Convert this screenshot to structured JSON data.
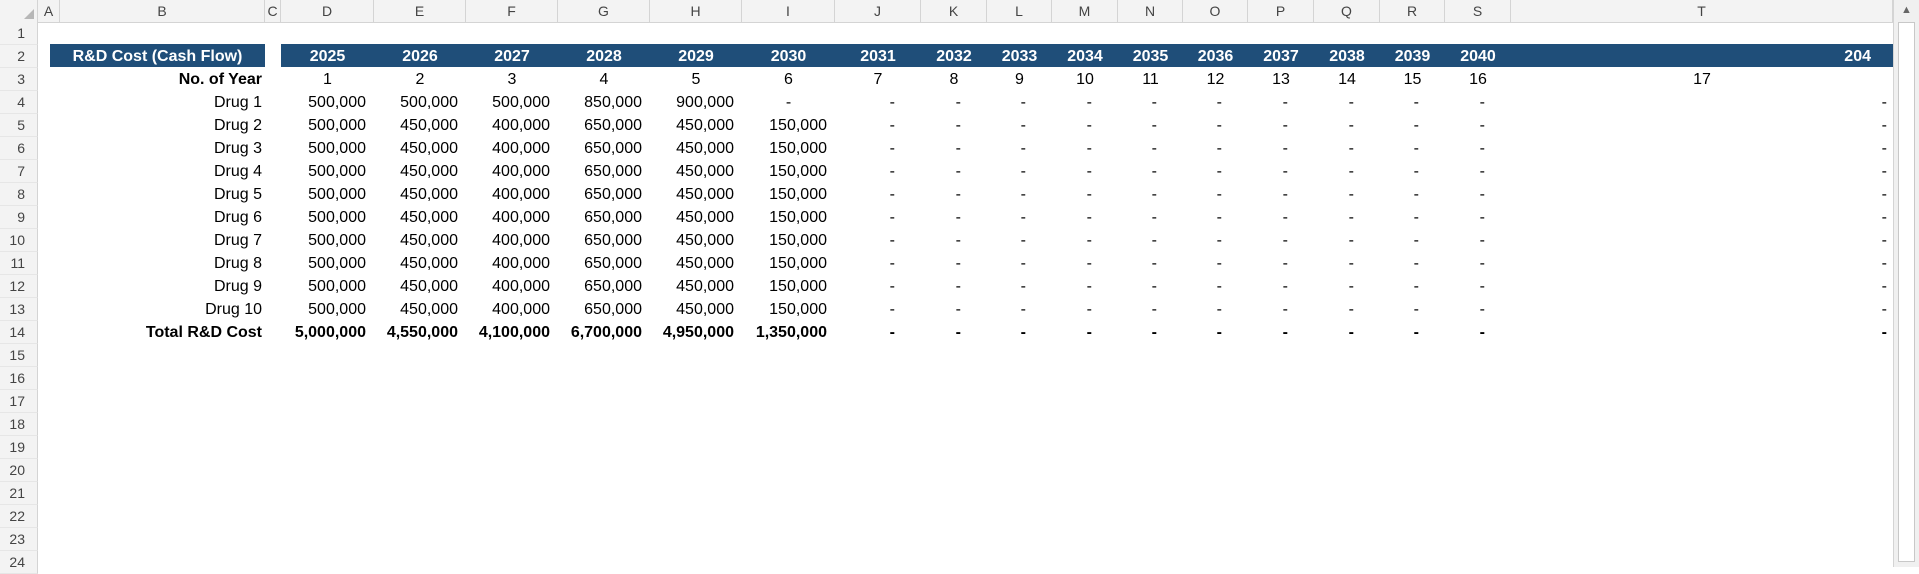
{
  "columns": [
    "A",
    "B",
    "C",
    "D",
    "E",
    "F",
    "G",
    "H",
    "I",
    "J",
    "K",
    "L",
    "M",
    "N",
    "O",
    "P",
    "Q",
    "R",
    "S",
    "T"
  ],
  "rows": [
    "1",
    "2",
    "3",
    "4",
    "5",
    "6",
    "7",
    "8",
    "9",
    "10",
    "11",
    "12",
    "13",
    "14",
    "15",
    "16",
    "17",
    "18",
    "19",
    "20",
    "21",
    "22",
    "23",
    "24"
  ],
  "table": {
    "title": "R&D Cost (Cash Flow)",
    "years": [
      "2025",
      "2026",
      "2027",
      "2028",
      "2029",
      "2030",
      "2031",
      "2032",
      "2033",
      "2034",
      "2035",
      "2036",
      "2037",
      "2038",
      "2039",
      "2040",
      "204"
    ],
    "year_no_label": "No. of Year",
    "year_numbers": [
      "1",
      "2",
      "3",
      "4",
      "5",
      "6",
      "7",
      "8",
      "9",
      "10",
      "11",
      "12",
      "13",
      "14",
      "15",
      "16",
      "17"
    ],
    "drugs": [
      {
        "name": "Drug 1",
        "values": [
          "500,000",
          "500,000",
          "500,000",
          "850,000",
          "900,000",
          "-",
          "-",
          "-",
          "-",
          "-",
          "-",
          "-",
          "-",
          "-",
          "-",
          "-",
          "-"
        ]
      },
      {
        "name": "Drug 2",
        "values": [
          "500,000",
          "450,000",
          "400,000",
          "650,000",
          "450,000",
          "150,000",
          "-",
          "-",
          "-",
          "-",
          "-",
          "-",
          "-",
          "-",
          "-",
          "-",
          "-"
        ]
      },
      {
        "name": "Drug 3",
        "values": [
          "500,000",
          "450,000",
          "400,000",
          "650,000",
          "450,000",
          "150,000",
          "-",
          "-",
          "-",
          "-",
          "-",
          "-",
          "-",
          "-",
          "-",
          "-",
          "-"
        ]
      },
      {
        "name": "Drug 4",
        "values": [
          "500,000",
          "450,000",
          "400,000",
          "650,000",
          "450,000",
          "150,000",
          "-",
          "-",
          "-",
          "-",
          "-",
          "-",
          "-",
          "-",
          "-",
          "-",
          "-"
        ]
      },
      {
        "name": "Drug 5",
        "values": [
          "500,000",
          "450,000",
          "400,000",
          "650,000",
          "450,000",
          "150,000",
          "-",
          "-",
          "-",
          "-",
          "-",
          "-",
          "-",
          "-",
          "-",
          "-",
          "-"
        ]
      },
      {
        "name": "Drug 6",
        "values": [
          "500,000",
          "450,000",
          "400,000",
          "650,000",
          "450,000",
          "150,000",
          "-",
          "-",
          "-",
          "-",
          "-",
          "-",
          "-",
          "-",
          "-",
          "-",
          "-"
        ]
      },
      {
        "name": "Drug 7",
        "values": [
          "500,000",
          "450,000",
          "400,000",
          "650,000",
          "450,000",
          "150,000",
          "-",
          "-",
          "-",
          "-",
          "-",
          "-",
          "-",
          "-",
          "-",
          "-",
          "-"
        ]
      },
      {
        "name": "Drug 8",
        "values": [
          "500,000",
          "450,000",
          "400,000",
          "650,000",
          "450,000",
          "150,000",
          "-",
          "-",
          "-",
          "-",
          "-",
          "-",
          "-",
          "-",
          "-",
          "-",
          "-"
        ]
      },
      {
        "name": "Drug 9",
        "values": [
          "500,000",
          "450,000",
          "400,000",
          "650,000",
          "450,000",
          "150,000",
          "-",
          "-",
          "-",
          "-",
          "-",
          "-",
          "-",
          "-",
          "-",
          "-",
          "-"
        ]
      },
      {
        "name": "Drug 10",
        "values": [
          "500,000",
          "450,000",
          "400,000",
          "650,000",
          "450,000",
          "150,000",
          "-",
          "-",
          "-",
          "-",
          "-",
          "-",
          "-",
          "-",
          "-",
          "-",
          "-"
        ]
      }
    ],
    "total_label": "Total R&D Cost",
    "totals": [
      "5,000,000",
      "4,550,000",
      "4,100,000",
      "6,700,000",
      "4,950,000",
      "1,350,000",
      "-",
      "-",
      "-",
      "-",
      "-",
      "-",
      "-",
      "-",
      "-",
      "-",
      "-"
    ]
  },
  "colors": {
    "header_band": "#1f4e79",
    "header_text": "#ffffff",
    "grid_header_bg": "#f3f3f3"
  },
  "icons": {
    "scroll_up": "scroll-up-arrow-icon"
  }
}
